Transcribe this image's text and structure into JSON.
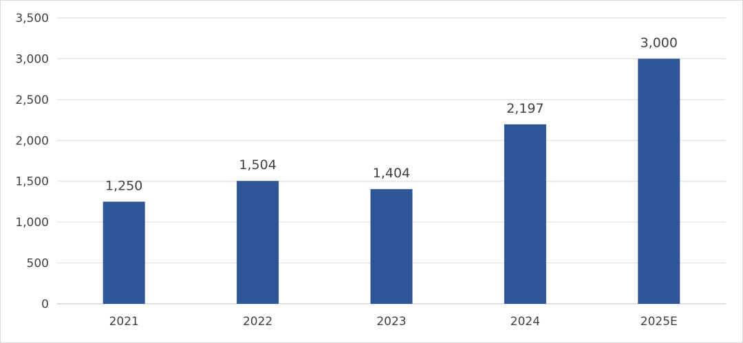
{
  "chart_data": {
    "type": "bar",
    "title": "",
    "xlabel": "",
    "ylabel": "",
    "categories": [
      "2021",
      "2022",
      "2023",
      "2024",
      "2025E"
    ],
    "values": [
      1250,
      1504,
      1404,
      2197,
      3000
    ],
    "data_labels": [
      "1,250",
      "1,504",
      "1,404",
      "2,197",
      "3,000"
    ],
    "ylim": [
      0,
      3500
    ],
    "yticks": [
      0,
      500,
      1000,
      1500,
      2000,
      2500,
      3000,
      3500
    ],
    "ytick_labels": [
      "0",
      "500",
      "1,000",
      "1,500",
      "2,000",
      "2,500",
      "3,000",
      "3,500"
    ],
    "grid": true,
    "legend": "none",
    "bar_color": "#2E5596"
  }
}
